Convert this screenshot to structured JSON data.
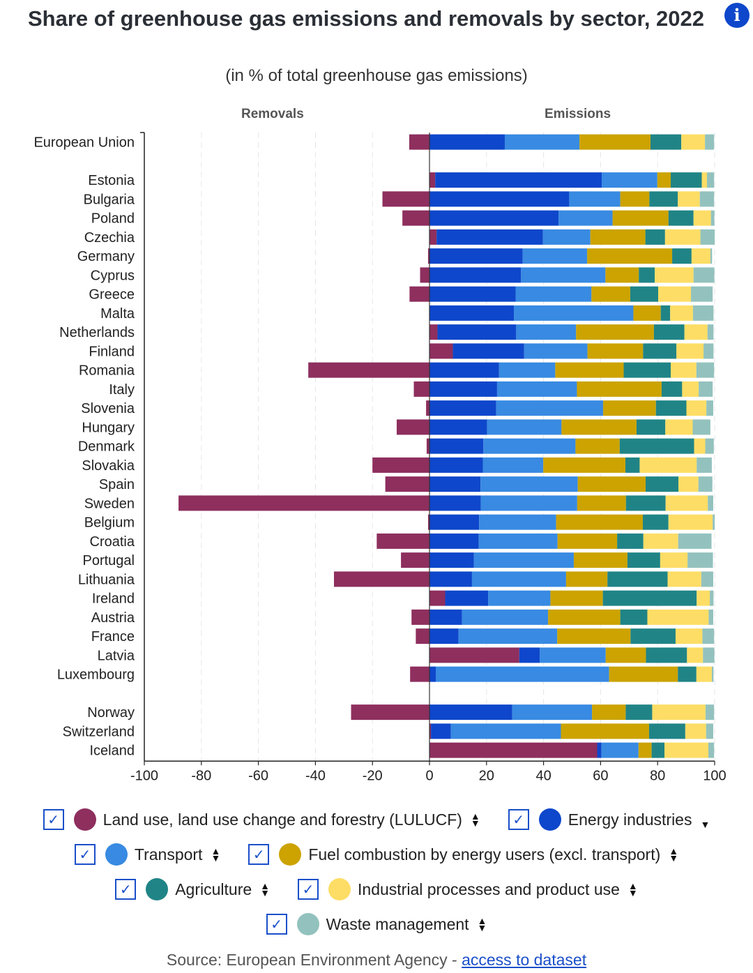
{
  "header": {
    "title": "Share of greenhouse gas emissions and removals by sector, 2022",
    "subtitle": "(in % of total greenhouse gas emissions)",
    "info_icon": "info-icon"
  },
  "column_headers": {
    "left": "Removals",
    "right": "Emissions"
  },
  "chart_data": {
    "type": "bar",
    "orientation": "horizontal-stacked",
    "title": "Share of greenhouse gas emissions and removals by sector, 2022",
    "subtitle": "(in % of total greenhouse gas emissions)",
    "xlabel": "",
    "ylabel": "",
    "xlim": [
      -100,
      100
    ],
    "xticks": [
      "-100",
      "-80",
      "-60",
      "-40",
      "-20",
      "0",
      "20",
      "40",
      "60",
      "80",
      "100"
    ],
    "grid": true,
    "legend_position": "bottom",
    "categories": [
      "European Union",
      "",
      "Estonia",
      "Bulgaria",
      "Poland",
      "Czechia",
      "Germany",
      "Cyprus",
      "Greece",
      "Malta",
      "Netherlands",
      "Finland",
      "Romania",
      "Italy",
      "Slovenia",
      "Hungary",
      "Denmark",
      "Slovakia",
      "Spain",
      "Sweden",
      "Belgium",
      "Croatia",
      "Portugal",
      "Lithuania",
      "Ireland",
      "Austria",
      "France",
      "Latvia",
      "Luxembourg",
      "",
      "Norway",
      "Switzerland",
      "Iceland"
    ],
    "series": [
      {
        "name": "Land use, land use change and forestry (LULUCF)",
        "color": "#8e2f5e",
        "values": [
          -7.1,
          null,
          2.0,
          -16.5,
          -9.5,
          2.5,
          -0.5,
          -3.3,
          -7.0,
          0.0,
          2.8,
          8.2,
          -42.5,
          -5.5,
          -1.2,
          -11.5,
          -1.0,
          -20.0,
          -15.5,
          -88.0,
          -0.5,
          -18.5,
          -10.0,
          -33.5,
          5.5,
          -6.3,
          -4.8,
          31.5,
          -6.8,
          null,
          -27.5,
          0.5,
          58.8
        ]
      },
      {
        "name": "Energy industries",
        "color": "#0e47cb",
        "values": [
          26.4,
          null,
          58.4,
          49.0,
          45.3,
          37.3,
          32.7,
          32.1,
          30.2,
          29.6,
          27.6,
          25.0,
          24.4,
          23.7,
          23.4,
          20.2,
          18.9,
          18.7,
          17.9,
          18.0,
          17.4,
          17.3,
          15.6,
          14.9,
          15.1,
          11.4,
          10.2,
          7.2,
          2.2,
          null,
          29.0,
          7.0,
          1.5
        ]
      },
      {
        "name": "Transport",
        "color": "#388ae2",
        "values": [
          26.2,
          null,
          19.5,
          17.9,
          18.9,
          16.6,
          22.6,
          29.6,
          26.6,
          41.9,
          21.0,
          22.2,
          19.7,
          28.0,
          37.5,
          26.1,
          32.3,
          21.2,
          34.1,
          33.8,
          27.0,
          27.6,
          35.0,
          33.0,
          21.8,
          30.2,
          34.6,
          23.1,
          60.8,
          null,
          28.0,
          38.6,
          13.0
        ]
      },
      {
        "name": "Fuel combustion by energy users (excl. transport)",
        "color": "#cca300",
        "values": [
          24.9,
          null,
          4.7,
          10.2,
          19.6,
          19.3,
          29.8,
          11.7,
          13.6,
          9.6,
          27.3,
          19.5,
          24.0,
          29.7,
          18.5,
          26.3,
          15.5,
          28.8,
          23.8,
          17.1,
          30.4,
          20.9,
          18.8,
          14.5,
          18.4,
          25.3,
          25.7,
          14.1,
          24.1,
          null,
          11.8,
          30.9,
          4.6
        ]
      },
      {
        "name": "Agriculture",
        "color": "#208486",
        "values": [
          10.8,
          null,
          10.9,
          10.0,
          8.8,
          6.9,
          6.8,
          5.6,
          9.8,
          3.3,
          10.7,
          11.7,
          16.5,
          7.2,
          10.7,
          10.1,
          26.1,
          5.0,
          11.5,
          13.9,
          9.0,
          9.2,
          11.5,
          21.1,
          32.9,
          9.5,
          15.8,
          14.4,
          6.5,
          null,
          9.3,
          12.7,
          4.5
        ]
      },
      {
        "name": "Industrial processes and product use",
        "color": "#fddd65",
        "values": [
          8.3,
          null,
          1.8,
          7.7,
          6.1,
          12.4,
          6.6,
          13.6,
          11.5,
          8.0,
          8.1,
          9.5,
          9.0,
          5.8,
          7.0,
          9.6,
          3.9,
          20.0,
          7.0,
          14.8,
          15.5,
          12.2,
          9.6,
          11.8,
          4.6,
          21.5,
          9.4,
          5.6,
          5.4,
          null,
          18.7,
          7.3,
          15.4
        ]
      },
      {
        "name": "Waste management",
        "color": "#93c2be",
        "values": [
          3.2,
          null,
          2.5,
          5.0,
          1.2,
          5.0,
          0.6,
          7.3,
          7.6,
          7.2,
          2.1,
          3.5,
          6.2,
          4.9,
          2.4,
          6.2,
          3.0,
          5.3,
          4.9,
          1.9,
          0.7,
          11.7,
          8.9,
          4.2,
          1.3,
          1.6,
          4.1,
          4.0,
          0.6,
          null,
          3.0,
          2.5,
          2.0
        ]
      }
    ]
  },
  "legend": {
    "items": [
      {
        "label": "Land use, land use change and forestry (LULUCF)",
        "color": "#8e2f5e",
        "checked": true,
        "sort": "both"
      },
      {
        "label": "Energy industries",
        "color": "#0e47cb",
        "checked": true,
        "sort": "down"
      },
      {
        "label": "Transport",
        "color": "#388ae2",
        "checked": true,
        "sort": "both"
      },
      {
        "label": "Fuel combustion by energy users (excl. transport)",
        "color": "#cca300",
        "checked": true,
        "sort": "both"
      },
      {
        "label": "Agriculture",
        "color": "#208486",
        "checked": true,
        "sort": "both"
      },
      {
        "label": "Industrial processes and product use",
        "color": "#fddd65",
        "checked": true,
        "sort": "both"
      },
      {
        "label": "Waste management",
        "color": "#93c2be",
        "checked": true,
        "sort": "both"
      }
    ]
  },
  "footer": {
    "source_prefix": "Source: European Environment Agency - ",
    "link_text": "access to dataset"
  }
}
